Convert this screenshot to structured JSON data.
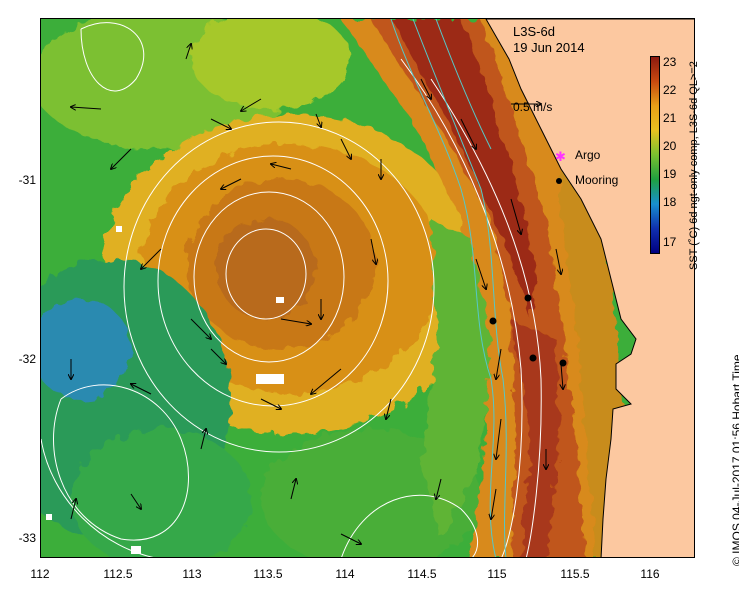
{
  "map": {
    "product": "L3S-6d",
    "date": "19 Jun 2014",
    "velocity_scale_label": "0.5 m/s",
    "legend": [
      {
        "label": "Argo",
        "symbol": "magenta-asterisk",
        "color": "#ff33ff"
      },
      {
        "label": "Mooring",
        "symbol": "black-dot",
        "color": "#000000"
      }
    ],
    "colorbar": {
      "label": "SST (˚C) 6d ngt-only comp, L3S-6d QL>=2",
      "ticks": [
        "23",
        "22",
        "21",
        "20",
        "19",
        "18",
        "17"
      ],
      "min": 16.5,
      "max": 23.5,
      "colors": [
        "#8b1a10",
        "#c84a10",
        "#e8a018",
        "#e8c020",
        "#7ac030",
        "#1fa040",
        "#1890d0",
        "#1030b0",
        "#000080"
      ]
    },
    "y_axis": {
      "ticks": [
        "-31",
        "-32",
        "-33"
      ]
    },
    "x_axis": {
      "ticks": [
        "112",
        "112.5",
        "113",
        "113.5",
        "114",
        "114.5",
        "115",
        "115.5",
        "116"
      ]
    },
    "credit": "© IMOS 04-Jul-2017 01:56 Hobart Time",
    "colors": {
      "land": "#fcc8a0",
      "cold_water": "#2aa84a",
      "warm_water": "#d88218",
      "current_core": "#9a2410",
      "contour": "#ffffff",
      "isobath": "#55c8c8"
    }
  }
}
